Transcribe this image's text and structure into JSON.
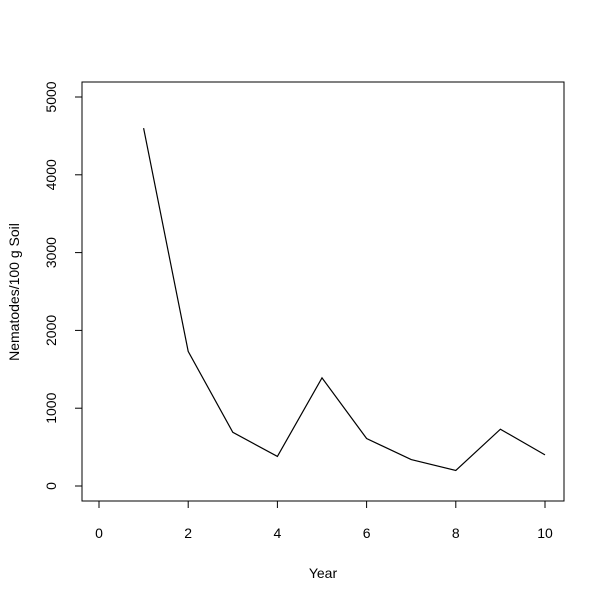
{
  "chart_data": {
    "type": "line",
    "title": "",
    "xlabel": "Year",
    "ylabel": "Nematodes/100 g Soil",
    "xlim": [
      0,
      10
    ],
    "ylim": [
      0,
      5000
    ],
    "xticks": [
      0,
      2,
      4,
      6,
      8,
      10
    ],
    "yticks": [
      0,
      1000,
      2000,
      3000,
      4000,
      5000
    ],
    "grid": false,
    "legend": "none",
    "line_color": "#000000",
    "series": [
      {
        "x": [
          1,
          2,
          3,
          4,
          5,
          6,
          7,
          8,
          9,
          10
        ],
        "values": [
          4600,
          1730,
          690,
          380,
          1390,
          610,
          340,
          200,
          730,
          400
        ]
      }
    ]
  }
}
